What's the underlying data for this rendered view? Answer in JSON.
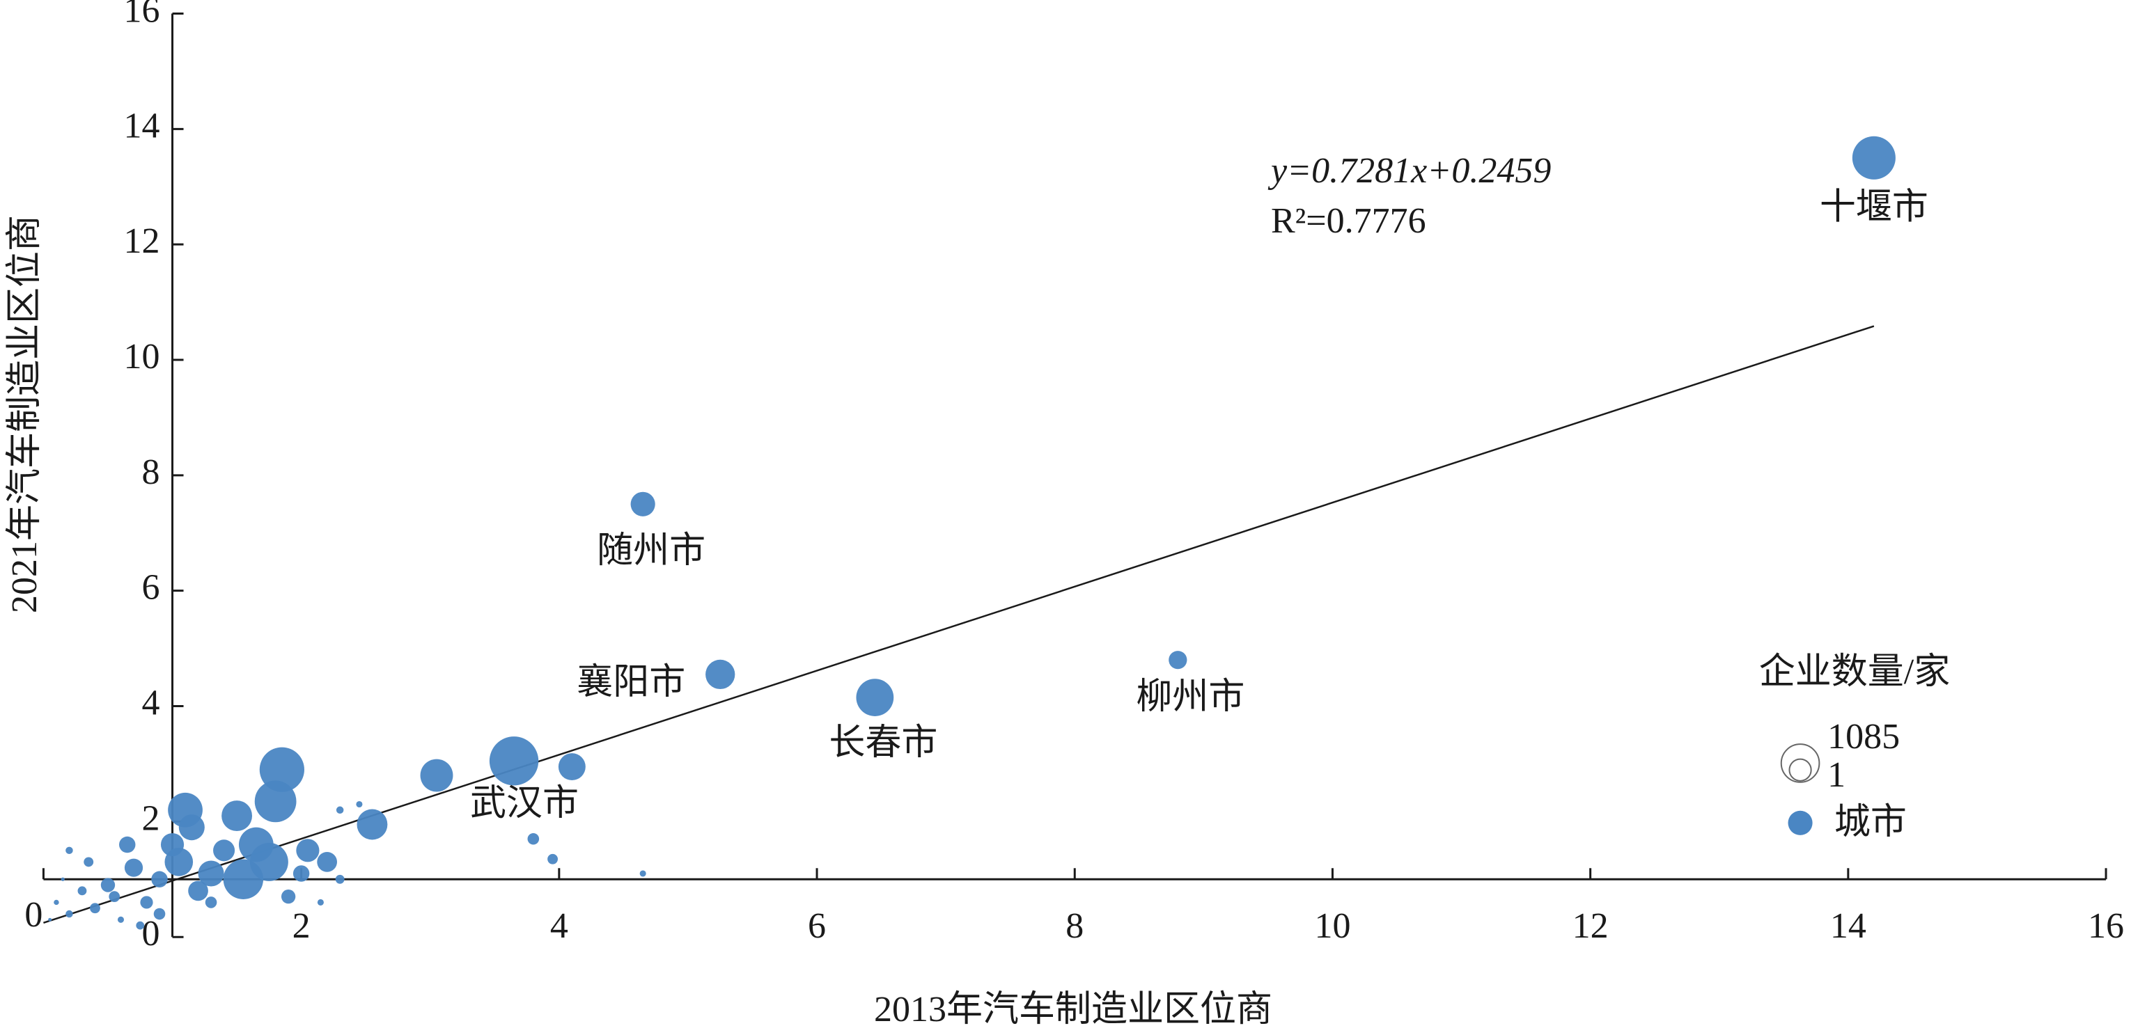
{
  "chart_data": {
    "type": "scatter",
    "x_label": "2013年汽车制造业区位商",
    "y_label": "2021年汽车制造业区位商",
    "xlim": [
      0,
      16
    ],
    "ylim": [
      0,
      16
    ],
    "xticks": [
      0,
      2,
      4,
      6,
      8,
      10,
      12,
      14,
      16
    ],
    "yticks": [
      0,
      2,
      4,
      6,
      8,
      10,
      12,
      14,
      16
    ],
    "axis_cross": [
      1,
      1
    ],
    "trendline": {
      "slope": 0.7281,
      "intercept": 0.2459,
      "x_range": [
        0,
        14.2
      ]
    },
    "annotations": [
      "y=0.7281x+0.2459",
      "R²=0.7776"
    ],
    "size_legend_title": "企业数量/家",
    "size_legend": [
      1085,
      1
    ],
    "series": [
      {
        "name": "城市",
        "color": "#4a86c3",
        "x": [
          0.05,
          0.1,
          0.2,
          0.3,
          0.15,
          0.4,
          0.5,
          0.6,
          0.7,
          0.55,
          0.8,
          0.9,
          1.0,
          1.05,
          1.1,
          1.2,
          1.3,
          1.4,
          1.5,
          1.55,
          1.65,
          1.75,
          1.8,
          1.85,
          2.0,
          2.05,
          2.2,
          2.3,
          2.45,
          2.55,
          2.3,
          1.9,
          0.75,
          0.35,
          1.3,
          3.05,
          4.1,
          3.8,
          3.95,
          4.65,
          0.2,
          0.65,
          1.15,
          2.15,
          0.9,
          3.65,
          4.65,
          5.25,
          6.45,
          8.8,
          14.2
        ],
        "values": [
          0.3,
          0.6,
          0.4,
          0.8,
          1.0,
          0.5,
          0.9,
          0.3,
          1.2,
          0.7,
          0.6,
          1.0,
          1.6,
          1.3,
          2.2,
          0.8,
          1.1,
          1.5,
          2.1,
          1.0,
          1.6,
          1.3,
          2.35,
          2.9,
          1.1,
          1.5,
          1.3,
          2.2,
          2.3,
          1.95,
          1.0,
          0.7,
          0.2,
          1.3,
          0.6,
          2.8,
          2.95,
          1.7,
          1.35,
          1.1,
          1.5,
          1.6,
          1.9,
          0.6,
          0.4,
          3.05,
          7.5,
          4.55,
          4.15,
          4.8,
          13.5
        ],
        "sizes": [
          5,
          20,
          40,
          60,
          10,
          80,
          150,
          30,
          250,
          90,
          120,
          200,
          400,
          600,
          900,
          300,
          500,
          350,
          700,
          1200,
          900,
          1100,
          1300,
          1500,
          200,
          400,
          300,
          40,
          30,
          700,
          60,
          150,
          50,
          70,
          100,
          800,
          550,
          100,
          80,
          30,
          40,
          200,
          500,
          30,
          100,
          1800,
          450,
          650,
          1050,
          250,
          1400
        ],
        "labels": [
          null,
          null,
          null,
          null,
          null,
          null,
          null,
          null,
          null,
          null,
          null,
          null,
          null,
          null,
          null,
          null,
          null,
          null,
          null,
          null,
          null,
          null,
          null,
          null,
          null,
          null,
          null,
          null,
          null,
          null,
          null,
          null,
          null,
          null,
          null,
          null,
          null,
          null,
          null,
          null,
          null,
          null,
          null,
          null,
          null,
          "武汉市",
          "随州市",
          "襄阳市",
          "长春市",
          "柳州市",
          "十堰市"
        ]
      }
    ]
  }
}
